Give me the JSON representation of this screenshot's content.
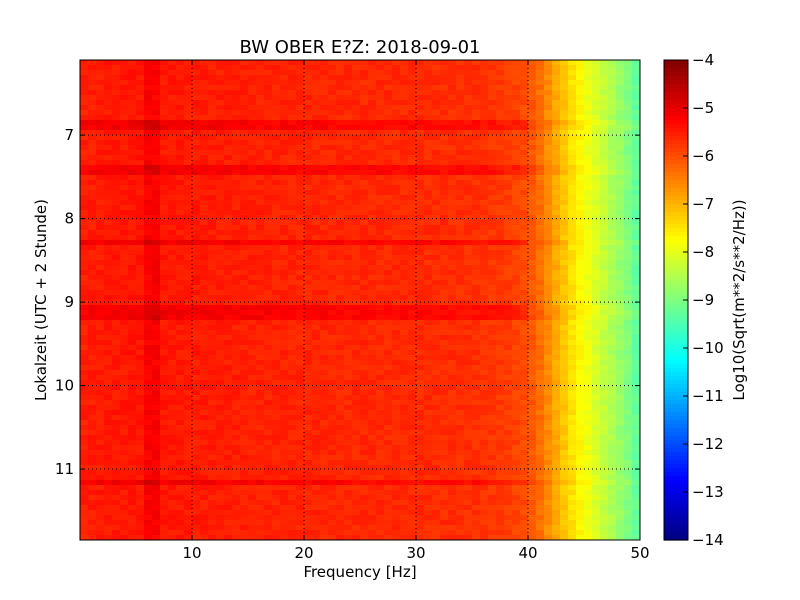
{
  "chart_data": {
    "type": "heatmap",
    "title": "BW OBER E?Z: 2018-09-01",
    "xlabel": "Frequency [Hz]",
    "ylabel": "Lokalzeit (UTC + 2 Stunde)",
    "xlim": [
      0,
      50
    ],
    "ylim": [
      11.85,
      6.1
    ],
    "x_ticks": [
      10,
      20,
      30,
      40,
      50
    ],
    "y_ticks": [
      7,
      8,
      9,
      10,
      11
    ],
    "grid": true,
    "colormap": "jet",
    "colorbar": {
      "label": "Log10(Sqrt(m**2/s**2/Hz))",
      "range": [
        -14,
        -4
      ],
      "ticks": [
        -4,
        -5,
        -6,
        -7,
        -8,
        -9,
        -10,
        -11,
        -12,
        -13,
        -14
      ]
    },
    "frequency_profile": {
      "frequency_hz": [
        0,
        2,
        5,
        10,
        20,
        30,
        35,
        38,
        40,
        41,
        42,
        43,
        44,
        45,
        46,
        47,
        48,
        49,
        50
      ],
      "log10_amplitude": [
        -5.55,
        -5.5,
        -5.45,
        -5.5,
        -5.6,
        -5.65,
        -5.7,
        -5.8,
        -6.0,
        -6.3,
        -6.7,
        -7.1,
        -7.5,
        -7.8,
        -8.1,
        -8.4,
        -8.7,
        -9.0,
        -9.4
      ]
    },
    "stronger_lines_hour": [
      6.88,
      7.42,
      8.3,
      9.07,
      9.16,
      11.18
    ],
    "stronger_band_hz": [
      5.5,
      7
    ]
  }
}
